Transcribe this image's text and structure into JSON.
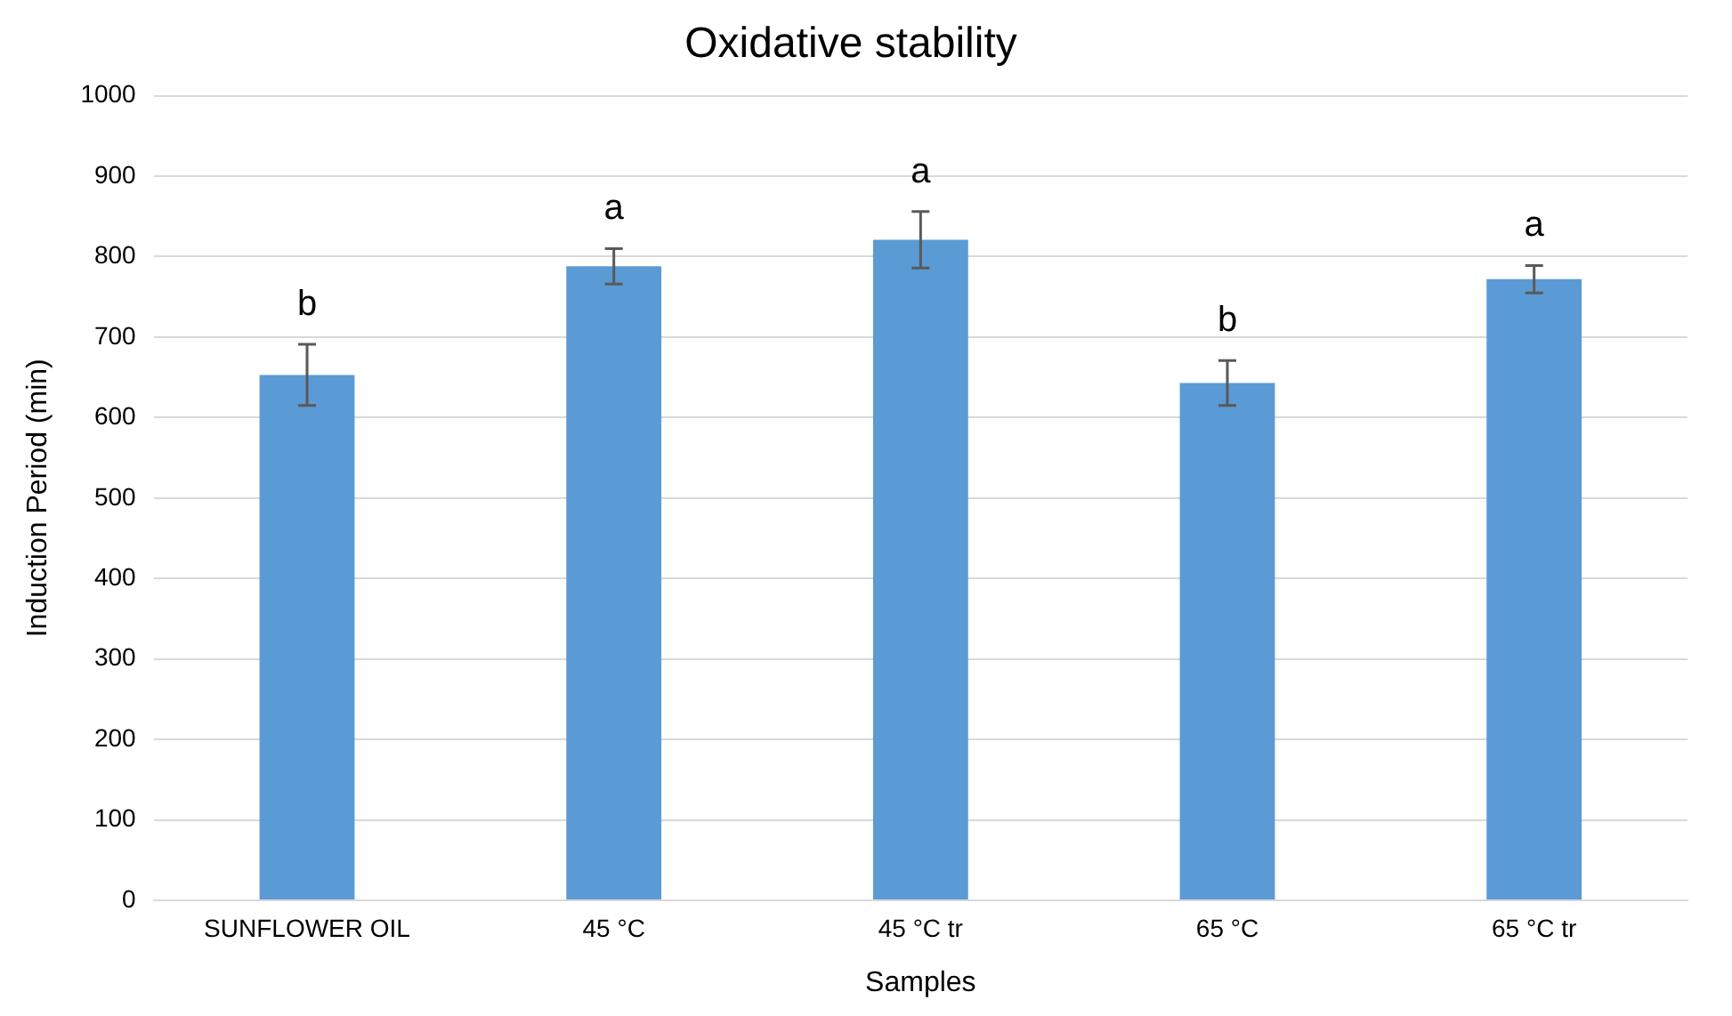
{
  "chart_data": {
    "type": "bar",
    "title": "Oxidative stability",
    "xlabel": "Samples",
    "ylabel": "Induction Period (min)",
    "categories": [
      "SUNFLOWER OIL",
      "45 °C",
      "45 °C tr",
      "65 °C",
      "65 °C tr"
    ],
    "values": [
      653,
      788,
      821,
      643,
      772
    ],
    "errors": [
      38,
      22,
      35,
      28,
      17
    ],
    "color": "#5b9bd5",
    "ylim": [
      0,
      1000
    ],
    "yticks": [
      0,
      100,
      200,
      300,
      400,
      500,
      600,
      700,
      800,
      900,
      1000
    ],
    "grid": "y",
    "legend": false,
    "annotations": [
      {
        "text": "b",
        "x": "SUNFLOWER OIL",
        "y": 653
      },
      {
        "text": "a",
        "x": "45 °C",
        "y": 788
      },
      {
        "text": "a",
        "x": "45 °C tr",
        "y": 821
      },
      {
        "text": "b",
        "x": "65 °C",
        "y": 643
      },
      {
        "text": "a",
        "x": "65 °C tr",
        "y": 772
      }
    ]
  }
}
